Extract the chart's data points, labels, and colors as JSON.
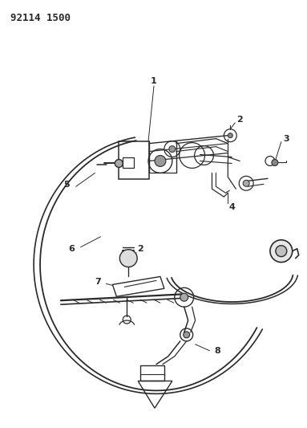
{
  "title": "92114 1500",
  "bg_color": "#ffffff",
  "lc": "#2a2a2a",
  "figsize": [
    3.83,
    5.33
  ],
  "dpi": 100,
  "title_fs": 9,
  "label_fs": 8
}
